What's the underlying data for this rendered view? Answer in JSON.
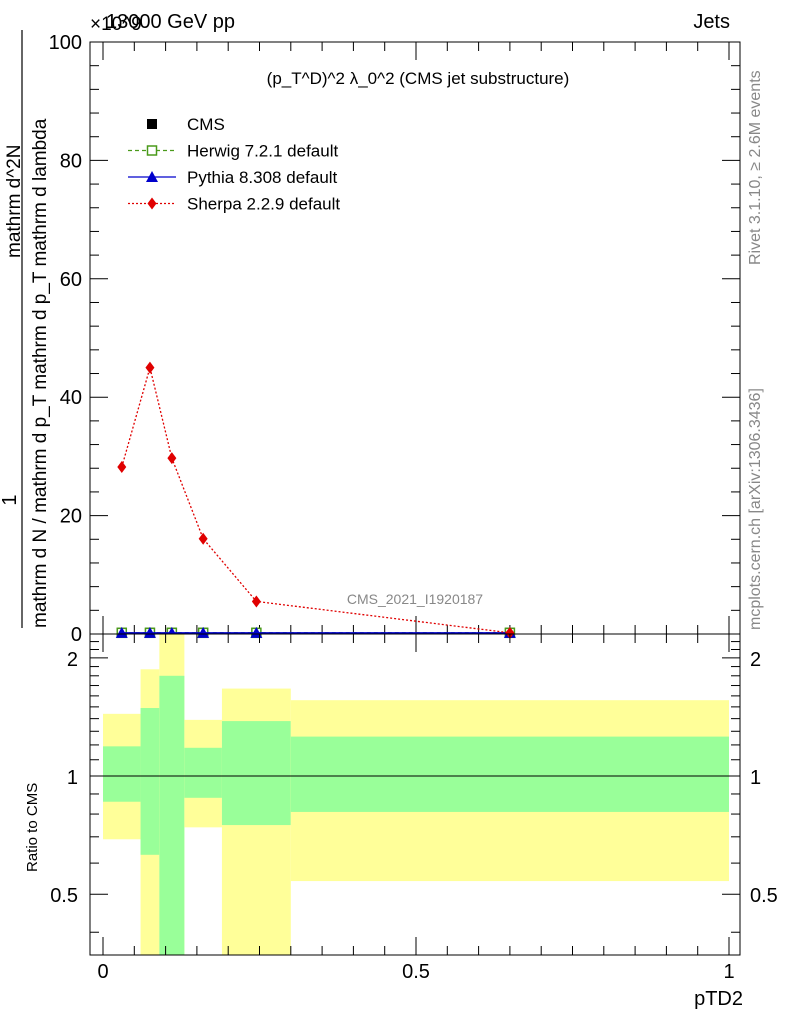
{
  "header": {
    "energy_label": "13000 GeV pp",
    "multiplier": "×10^9",
    "process": "Jets"
  },
  "side": {
    "rivet": "Rivet 3.1.10, ≥ 2.6M events",
    "mcplots": "mcplots.cern.ch [arXiv:1306.3436]"
  },
  "chart_data": [
    {
      "type": "line",
      "title": "(p_T^D)^2 λ_0^2 (CMS jet substructure)",
      "watermark": "CMS_2021_I1920187",
      "ylabel": {
        "numerator": "1",
        "denominator": "mathrm d N / mathrm d p_T mathrm d p_T mathrm d lambda",
        "top": "mathrm d^2N"
      },
      "xlabel": "pTD2",
      "xlim": [
        0,
        1
      ],
      "ylim": [
        0,
        100
      ],
      "y_multiplier": "×10^9",
      "yticks": [
        0,
        20,
        40,
        60,
        80,
        100
      ],
      "x": [
        0.03,
        0.075,
        0.11,
        0.16,
        0.245,
        0.65
      ],
      "series": [
        {
          "name": "CMS",
          "color": "#000000",
          "marker": "square",
          "values": [
            0.2,
            0.2,
            0.2,
            0.2,
            0.2,
            0.2
          ]
        },
        {
          "name": "Herwig 7.2.1 default",
          "color": "#4a9a1a",
          "marker": "open-square",
          "line": "dashed",
          "values": [
            0.2,
            0.2,
            0.2,
            0.2,
            0.2,
            0.2
          ]
        },
        {
          "name": "Pythia 8.308 default",
          "color": "#0000cc",
          "marker": "triangle",
          "line": "solid",
          "values": [
            0.2,
            0.2,
            0.2,
            0.2,
            0.2,
            0.2
          ]
        },
        {
          "name": "Sherpa 2.2.9 default",
          "color": "#e00000",
          "marker": "diamond",
          "line": "dotted",
          "values": [
            28.2,
            45.0,
            29.7,
            16.1,
            5.5,
            0.2
          ]
        }
      ]
    },
    {
      "type": "area",
      "ylabel": "Ratio to CMS",
      "xlabel": "pTD2",
      "xlim": [
        0,
        1
      ],
      "ylim": [
        0.35,
        2.3
      ],
      "yticks": [
        0.5,
        1,
        2
      ],
      "ytick_labels": [
        "0.5",
        "1",
        "2"
      ],
      "xticks": [
        0,
        0.5,
        1
      ],
      "xtick_labels": [
        "0",
        "0.5",
        "1"
      ],
      "bins": [
        {
          "lo": 0.0,
          "hi": 0.06,
          "green": [
            0.86,
            1.19
          ],
          "yellow": [
            0.69,
            1.44
          ]
        },
        {
          "lo": 0.06,
          "hi": 0.09,
          "green": [
            0.63,
            1.49
          ],
          "yellow": [
            0.3,
            1.87
          ]
        },
        {
          "lo": 0.09,
          "hi": 0.13,
          "green": [
            0.3,
            1.8
          ],
          "yellow": [
            0.3,
            2.5
          ]
        },
        {
          "lo": 0.13,
          "hi": 0.19,
          "green": [
            0.88,
            1.18
          ],
          "yellow": [
            0.74,
            1.39
          ]
        },
        {
          "lo": 0.19,
          "hi": 0.3,
          "green": [
            0.75,
            1.38
          ],
          "yellow": [
            0.3,
            1.67
          ]
        },
        {
          "lo": 0.3,
          "hi": 1.0,
          "green": [
            0.81,
            1.26
          ],
          "yellow": [
            0.54,
            1.56
          ]
        }
      ],
      "band_colors": {
        "green": "#99ff99",
        "yellow": "#ffff99"
      },
      "reference_line": 1
    }
  ]
}
